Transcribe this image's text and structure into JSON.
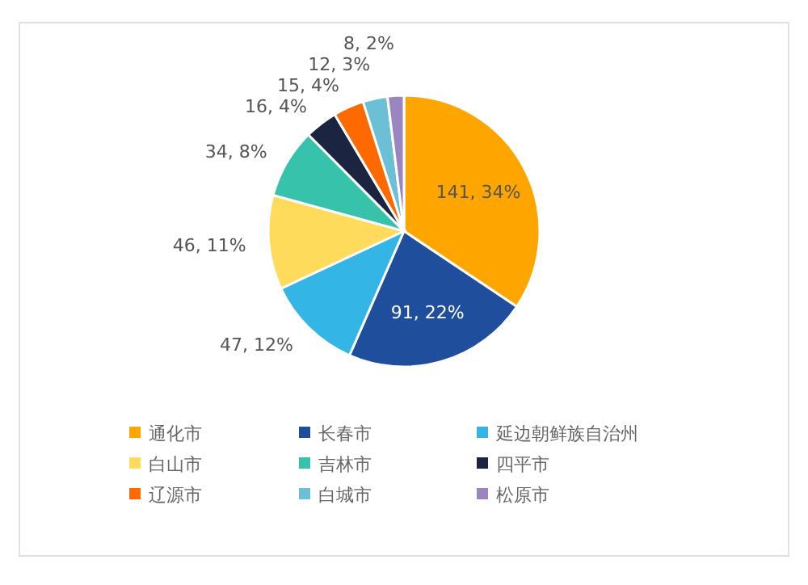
{
  "chart_data": {
    "type": "pie",
    "categories": [
      "通化市",
      "长春市",
      "延边朝鲜族自治州",
      "白山市",
      "吉林市",
      "四平市",
      "辽源市",
      "白城市",
      "松原市"
    ],
    "values": [
      141,
      91,
      47,
      46,
      34,
      16,
      15,
      12,
      8
    ],
    "colors": [
      "#ffa500",
      "#1f4e9c",
      "#33b5e5",
      "#ffdb5c",
      "#37c2ab",
      "#1b2440",
      "#ff6a00",
      "#6cc0d6",
      "#9b85c0"
    ],
    "value_labels": [
      "141, 34%",
      "91, 22%",
      "47, 12%",
      "46, 11%",
      "34, 8%",
      "16, 4%",
      "15, 4%",
      "12, 3%",
      "8, 2%"
    ],
    "legend": "bottom"
  }
}
